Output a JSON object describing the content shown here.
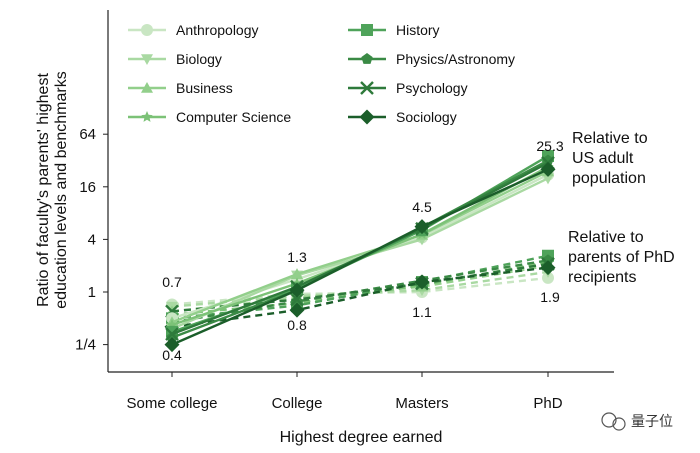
{
  "chart_data": {
    "type": "line",
    "xlabel": "Highest degree earned",
    "ylabel_lines": [
      "Ratio of faculty's parents' highest",
      "education levels and benchmarks"
    ],
    "categories": [
      "Some college",
      "College",
      "Masters",
      "PhD"
    ],
    "y_scale": "log2",
    "ylim": [
      0.18,
      200
    ],
    "y_ticks": [
      {
        "value": 0.25,
        "label": "1/4"
      },
      {
        "value": 1,
        "label": "1"
      },
      {
        "value": 4,
        "label": "4"
      },
      {
        "value": 16,
        "label": "16"
      },
      {
        "value": 64,
        "label": "64"
      }
    ],
    "grid": false,
    "legend_position": "top-left",
    "groups": [
      {
        "label_lines": [
          "Relative to",
          "US adult",
          "population"
        ],
        "line_style": "solid"
      },
      {
        "label_lines": [
          "Relative to",
          "parents of PhD",
          "recipients"
        ],
        "line_style": "dashed"
      }
    ],
    "series": [
      {
        "name": "Anthropology",
        "color": "#c9e6c3",
        "marker": "circle",
        "us_adult": [
          0.5,
          1.4,
          4.2,
          22
        ],
        "phd_parents": [
          0.72,
          0.95,
          1.0,
          1.45
        ]
      },
      {
        "name": "Biology",
        "color": "#a9d9a2",
        "marker": "triangle-down",
        "us_adult": [
          0.38,
          1.55,
          4.0,
          20
        ],
        "phd_parents": [
          0.68,
          0.9,
          1.05,
          1.7
        ]
      },
      {
        "name": "Business",
        "color": "#92cf8b",
        "marker": "triangle-up",
        "us_adult": [
          0.45,
          1.6,
          4.5,
          24
        ],
        "phd_parents": [
          0.6,
          0.85,
          1.15,
          2.0
        ]
      },
      {
        "name": "Computer Science",
        "color": "#7cc277",
        "marker": "star",
        "us_adult": [
          0.42,
          1.25,
          4.6,
          27
        ],
        "phd_parents": [
          0.55,
          0.75,
          1.2,
          2.2
        ]
      },
      {
        "name": "History",
        "color": "#4fa35a",
        "marker": "square",
        "us_adult": [
          0.35,
          1.1,
          5.1,
          36
        ],
        "phd_parents": [
          0.5,
          0.7,
          1.3,
          2.6
        ]
      },
      {
        "name": "Physics/Astronomy",
        "color": "#3a8a45",
        "marker": "pentagon",
        "us_adult": [
          0.3,
          1.05,
          5.5,
          32
        ],
        "phd_parents": [
          0.45,
          0.78,
          1.35,
          2.3
        ]
      },
      {
        "name": "Psychology",
        "color": "#2e7a3b",
        "marker": "x",
        "us_adult": [
          0.33,
          1.15,
          5.3,
          30
        ],
        "phd_parents": [
          0.6,
          0.82,
          1.25,
          2.1
        ]
      },
      {
        "name": "Sociology",
        "color": "#1b5e2a",
        "marker": "diamond",
        "us_adult": [
          0.25,
          1.05,
          5.6,
          25.3
        ],
        "phd_parents": [
          0.4,
          0.62,
          1.3,
          1.9
        ]
      }
    ],
    "annotations": {
      "us_adult": [
        "0.4",
        "1.3",
        "4.5",
        "25.3"
      ],
      "phd_parents": [
        "0.7",
        "0.8",
        "1.1",
        "1.9"
      ]
    }
  },
  "watermark": {
    "text": "量子位",
    "icon": "wechat-icon"
  }
}
